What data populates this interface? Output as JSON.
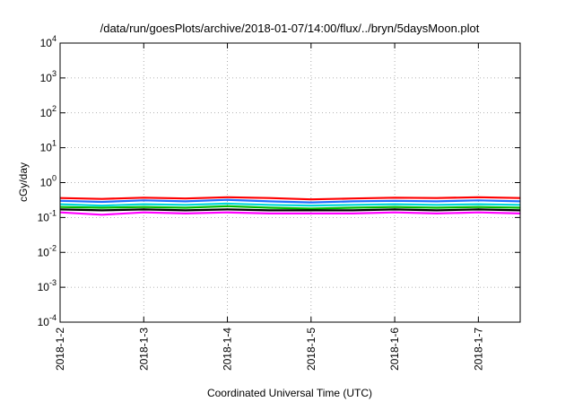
{
  "chart_data": {
    "type": "line",
    "title": "/data/run/goesPlots/archive/2018-01-07/14:00/flux/../bryn/5daysMoon.plot",
    "xlabel": "Coordinated Universal Time (UTC)",
    "ylabel": "cGy/day",
    "yscale": "log",
    "ylim": [
      0.0001,
      10000
    ],
    "y_ticks": [
      {
        "value": 0.0001,
        "base": "10",
        "exp": "-4"
      },
      {
        "value": 0.001,
        "base": "10",
        "exp": "-3"
      },
      {
        "value": 0.01,
        "base": "10",
        "exp": "-2"
      },
      {
        "value": 0.1,
        "base": "10",
        "exp": "-1"
      },
      {
        "value": 1,
        "base": "10",
        "exp": "0"
      },
      {
        "value": 10,
        "base": "10",
        "exp": "1"
      },
      {
        "value": 100,
        "base": "10",
        "exp": "2"
      },
      {
        "value": 1000,
        "base": "10",
        "exp": "3"
      },
      {
        "value": 10000,
        "base": "10",
        "exp": "4"
      }
    ],
    "xlim": [
      "2018-01-02T00:00",
      "2018-01-07T12:00"
    ],
    "x_ticks": [
      "2018-1-2",
      "2018-1-3",
      "2018-1-4",
      "2018-1-5",
      "2018-1-6",
      "2018-1-7"
    ],
    "grid": true,
    "legend": "none",
    "x_times": [
      "2018-01-02T00:00",
      "2018-01-02T12:00",
      "2018-01-03T00:00",
      "2018-01-03T12:00",
      "2018-01-04T00:00",
      "2018-01-04T12:00",
      "2018-01-05T00:00",
      "2018-01-05T12:00",
      "2018-01-06T00:00",
      "2018-01-06T12:00",
      "2018-01-07T00:00",
      "2018-01-07T12:00"
    ],
    "series": [
      {
        "color": "#ff0000",
        "values": [
          0.36,
          0.34,
          0.37,
          0.35,
          0.38,
          0.36,
          0.33,
          0.35,
          0.37,
          0.36,
          0.38,
          0.36
        ]
      },
      {
        "color": "#1e6fff",
        "values": [
          0.3,
          0.28,
          0.31,
          0.29,
          0.32,
          0.29,
          0.27,
          0.29,
          0.3,
          0.29,
          0.31,
          0.29
        ]
      },
      {
        "color": "#00d8d8",
        "values": [
          0.24,
          0.22,
          0.24,
          0.23,
          0.25,
          0.23,
          0.22,
          0.23,
          0.24,
          0.23,
          0.24,
          0.23
        ]
      },
      {
        "color": "#00bb00",
        "values": [
          0.2,
          0.19,
          0.2,
          0.19,
          0.21,
          0.19,
          0.18,
          0.19,
          0.2,
          0.19,
          0.2,
          0.19
        ]
      },
      {
        "color": "#000000",
        "values": [
          0.17,
          0.16,
          0.17,
          0.16,
          0.17,
          0.16,
          0.16,
          0.16,
          0.17,
          0.16,
          0.17,
          0.16
        ]
      },
      {
        "color": "#ff00ff",
        "values": [
          0.14,
          0.12,
          0.14,
          0.13,
          0.14,
          0.13,
          0.13,
          0.13,
          0.14,
          0.13,
          0.14,
          0.13
        ]
      }
    ]
  }
}
